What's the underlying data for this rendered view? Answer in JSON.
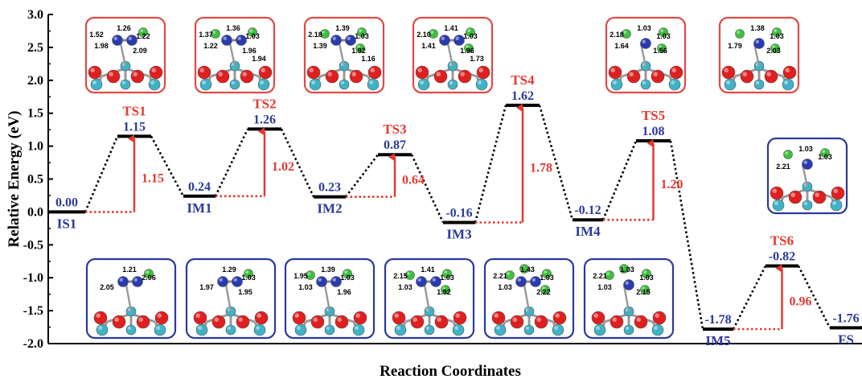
{
  "chart_data": {
    "type": "line",
    "xlabel": "Reaction Coordinates",
    "ylabel": "Relative Energy (eV)",
    "ylim": [
      -2.0,
      3.0
    ],
    "yticks": [
      "-2.0",
      "-1.5",
      "-1.0",
      "-0.5",
      "0.0",
      "0.5",
      "1.0",
      "1.5",
      "2.0",
      "2.5",
      "3.0"
    ],
    "grid": false,
    "levels": [
      {
        "name": "IS1",
        "value": 0.0,
        "value_label": "0.00",
        "kind": "intermediate"
      },
      {
        "name": "TS1",
        "value": 1.15,
        "value_label": "1.15",
        "kind": "transition"
      },
      {
        "name": "IM1",
        "value": 0.24,
        "value_label": "0.24",
        "kind": "intermediate"
      },
      {
        "name": "TS2",
        "value": 1.26,
        "value_label": "1.26",
        "kind": "transition"
      },
      {
        "name": "IM2",
        "value": 0.23,
        "value_label": "0.23",
        "kind": "intermediate"
      },
      {
        "name": "TS3",
        "value": 0.87,
        "value_label": "0.87",
        "kind": "transition"
      },
      {
        "name": "IM3",
        "value": -0.16,
        "value_label": "-0.16",
        "kind": "intermediate"
      },
      {
        "name": "TS4",
        "value": 1.62,
        "value_label": "1.62",
        "kind": "transition"
      },
      {
        "name": "IM4",
        "value": -0.12,
        "value_label": "-0.12",
        "kind": "intermediate"
      },
      {
        "name": "TS5",
        "value": 1.08,
        "value_label": "1.08",
        "kind": "transition"
      },
      {
        "name": "IM5",
        "value": -1.78,
        "value_label": "-1.78",
        "kind": "intermediate"
      },
      {
        "name": "TS6",
        "value": -0.82,
        "value_label": "-0.82",
        "kind": "transition"
      },
      {
        "name": "FS",
        "value": -1.76,
        "value_label": "-1.76",
        "kind": "intermediate"
      }
    ],
    "barriers": [
      {
        "from": "IS1",
        "to": "TS1",
        "value": 1.15,
        "label": "1.15"
      },
      {
        "from": "IM1",
        "to": "TS2",
        "value": 1.02,
        "label": "1.02"
      },
      {
        "from": "IM2",
        "to": "TS3",
        "value": 0.64,
        "label": "0.64"
      },
      {
        "from": "IM3",
        "to": "TS4",
        "value": 1.78,
        "label": "1.78"
      },
      {
        "from": "IM4",
        "to": "TS5",
        "value": 1.2,
        "label": "1.20"
      },
      {
        "from": "IM5",
        "to": "TS6",
        "value": 0.96,
        "label": "0.96"
      }
    ],
    "structure_bond_labels": {
      "TS1": [
        "1.26",
        "1.22",
        "1.98",
        "2.09",
        "1.52"
      ],
      "TS2": [
        "1.36",
        "1.03",
        "1.22",
        "1.96",
        "1.37",
        "1.94"
      ],
      "TS3": [
        "1.39",
        "1.03",
        "1.39",
        "1.92",
        "2.18",
        "1.16"
      ],
      "TS4": [
        "1.41",
        "1.03",
        "1.41",
        "1.96",
        "2.10",
        "1.73"
      ],
      "TS5": [
        "1.03",
        "1.03",
        "1.64",
        "1.56",
        "2.18"
      ],
      "FS_top": [
        "1.38",
        "1.03",
        "1.79",
        "2.03"
      ],
      "TS6": [
        "1.03",
        "1.03",
        "2.21"
      ],
      "IS1": [
        "1.21",
        "2.06",
        "2.05"
      ],
      "IM1": [
        "1.29",
        "1.03",
        "1.97",
        "1.95"
      ],
      "IM2": [
        "1.39",
        "1.03",
        "1.03",
        "1.96",
        "1.95"
      ],
      "IM3": [
        "1.41",
        "1.03",
        "1.03",
        "1.92",
        "2.15"
      ],
      "IM4": [
        "1.43",
        "1.03",
        "1.03",
        "2.22",
        "2.21"
      ],
      "IM5": [
        "1.03",
        "1.03",
        "1.03",
        "2.15",
        "2.21"
      ]
    }
  },
  "colors": {
    "intermediate_label": "#2b3a9a",
    "transition_label": "#e23a32",
    "barrier_arrow": "#e23a32",
    "level_line": "#000000",
    "box_red": "#e04a44",
    "box_blue": "#2b3a9a",
    "atom_o": "#e01f1f",
    "atom_metal": "#3fb2c6",
    "atom_n": "#2a3bb0",
    "atom_h": "#3cc23c"
  }
}
